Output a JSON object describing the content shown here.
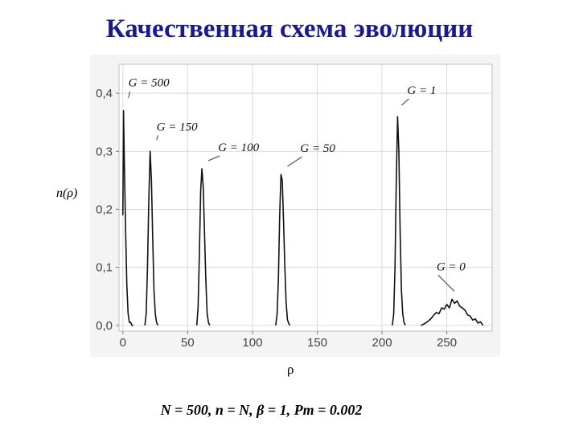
{
  "title": "Качественная схема эволюции",
  "caption": "N = 500, n = N, β = 1, Pm = 0.002",
  "chart_data": {
    "type": "line",
    "title": "",
    "xlabel": "ρ",
    "ylabel": "n(ρ)",
    "xlim": [
      -3,
      285
    ],
    "ylim": [
      -0.01,
      0.45
    ],
    "xticks": [
      0,
      50,
      100,
      150,
      200,
      250
    ],
    "xtick_labels": [
      "0",
      "50",
      "100",
      "150",
      "200",
      "250"
    ],
    "yticks": [
      0.0,
      0.1,
      0.2,
      0.3,
      0.4
    ],
    "ytick_labels": [
      "0,0",
      "0,1",
      "0,2",
      "0,3",
      "0,4"
    ],
    "grid": true,
    "series": [
      {
        "name": "G = 500",
        "x": [
          0,
          0.5,
          1,
          2,
          3,
          4,
          5,
          6,
          7,
          8
        ],
        "y": [
          0.19,
          0.37,
          0.3,
          0.17,
          0.07,
          0.02,
          0.005,
          0.005,
          0.0,
          0.0
        ]
      },
      {
        "name": "G = 150",
        "x": [
          17,
          18,
          19,
          20,
          21,
          22,
          23,
          24,
          25,
          26,
          27
        ],
        "y": [
          0.0,
          0.02,
          0.1,
          0.22,
          0.3,
          0.25,
          0.15,
          0.06,
          0.02,
          0.005,
          0.0
        ]
      },
      {
        "name": "G = 100",
        "x": [
          57,
          58,
          59,
          60,
          61,
          62,
          63,
          64,
          65,
          66,
          67
        ],
        "y": [
          0.0,
          0.03,
          0.12,
          0.23,
          0.27,
          0.24,
          0.16,
          0.08,
          0.02,
          0.005,
          0.0
        ]
      },
      {
        "name": "G = 50",
        "x": [
          118,
          119,
          120,
          121,
          122,
          123,
          124,
          125,
          126,
          127,
          128,
          129
        ],
        "y": [
          0.0,
          0.02,
          0.08,
          0.19,
          0.26,
          0.25,
          0.18,
          0.1,
          0.04,
          0.01,
          0.003,
          0.0
        ]
      },
      {
        "name": "G = 1",
        "x": [
          208,
          209,
          210,
          211,
          212,
          213,
          214,
          215,
          216,
          217,
          218
        ],
        "y": [
          0.0,
          0.02,
          0.1,
          0.25,
          0.36,
          0.3,
          0.16,
          0.06,
          0.02,
          0.005,
          0.0
        ]
      },
      {
        "name": "G = 0",
        "x": [
          230,
          233,
          236,
          238,
          240,
          242,
          244,
          246,
          248,
          250,
          252,
          254,
          256,
          258,
          260,
          262,
          264,
          266,
          268,
          270,
          272,
          274,
          276,
          278
        ],
        "y": [
          0.0,
          0.003,
          0.008,
          0.012,
          0.018,
          0.022,
          0.02,
          0.03,
          0.028,
          0.036,
          0.03,
          0.045,
          0.038,
          0.042,
          0.033,
          0.03,
          0.026,
          0.018,
          0.016,
          0.009,
          0.011,
          0.004,
          0.006,
          0.0
        ]
      }
    ],
    "annotations": [
      {
        "text": "G = 500",
        "x": 0.5,
        "y": 0.37
      },
      {
        "text": "G = 150",
        "x": 21,
        "y": 0.3
      },
      {
        "text": "G = 100",
        "x": 61,
        "y": 0.27
      },
      {
        "text": "G = 50",
        "x": 122,
        "y": 0.26
      },
      {
        "text": "G = 1",
        "x": 212,
        "y": 0.36
      },
      {
        "text": "G = 0",
        "x": 252,
        "y": 0.045
      }
    ]
  }
}
